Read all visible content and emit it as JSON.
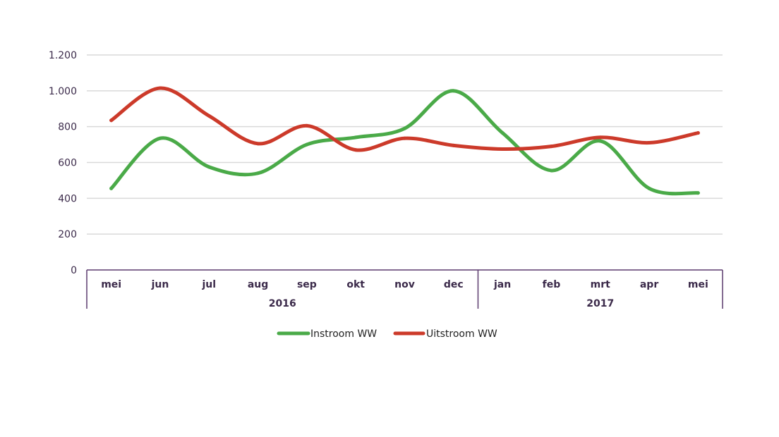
{
  "chart_data": {
    "type": "line",
    "title": "",
    "xlabel": "",
    "ylabel": "",
    "categories": [
      "mei",
      "jun",
      "jul",
      "aug",
      "sep",
      "okt",
      "nov",
      "dec",
      "jan",
      "feb",
      "mrt",
      "apr",
      "mei"
    ],
    "groups": [
      {
        "label": "2016",
        "count": 8
      },
      {
        "label": "2017",
        "count": 5
      }
    ],
    "ylim": [
      0,
      1200
    ],
    "yticks": [
      0,
      200,
      400,
      600,
      800,
      1000,
      1200
    ],
    "ytick_labels": [
      "0",
      "200",
      "400",
      "600",
      "800",
      "1.000",
      "1.200"
    ],
    "grid": true,
    "legend_position": "bottom",
    "series": [
      {
        "name": "Instroom WW",
        "color": "#4aaa48",
        "values": [
          455,
          735,
          575,
          540,
          700,
          740,
          790,
          1000,
          765,
          555,
          720,
          455,
          430
        ]
      },
      {
        "name": "Uitstroom WW",
        "color": "#cc3a2a",
        "values": [
          835,
          1015,
          860,
          705,
          805,
          670,
          735,
          695,
          675,
          690,
          740,
          710,
          765
        ]
      }
    ]
  }
}
